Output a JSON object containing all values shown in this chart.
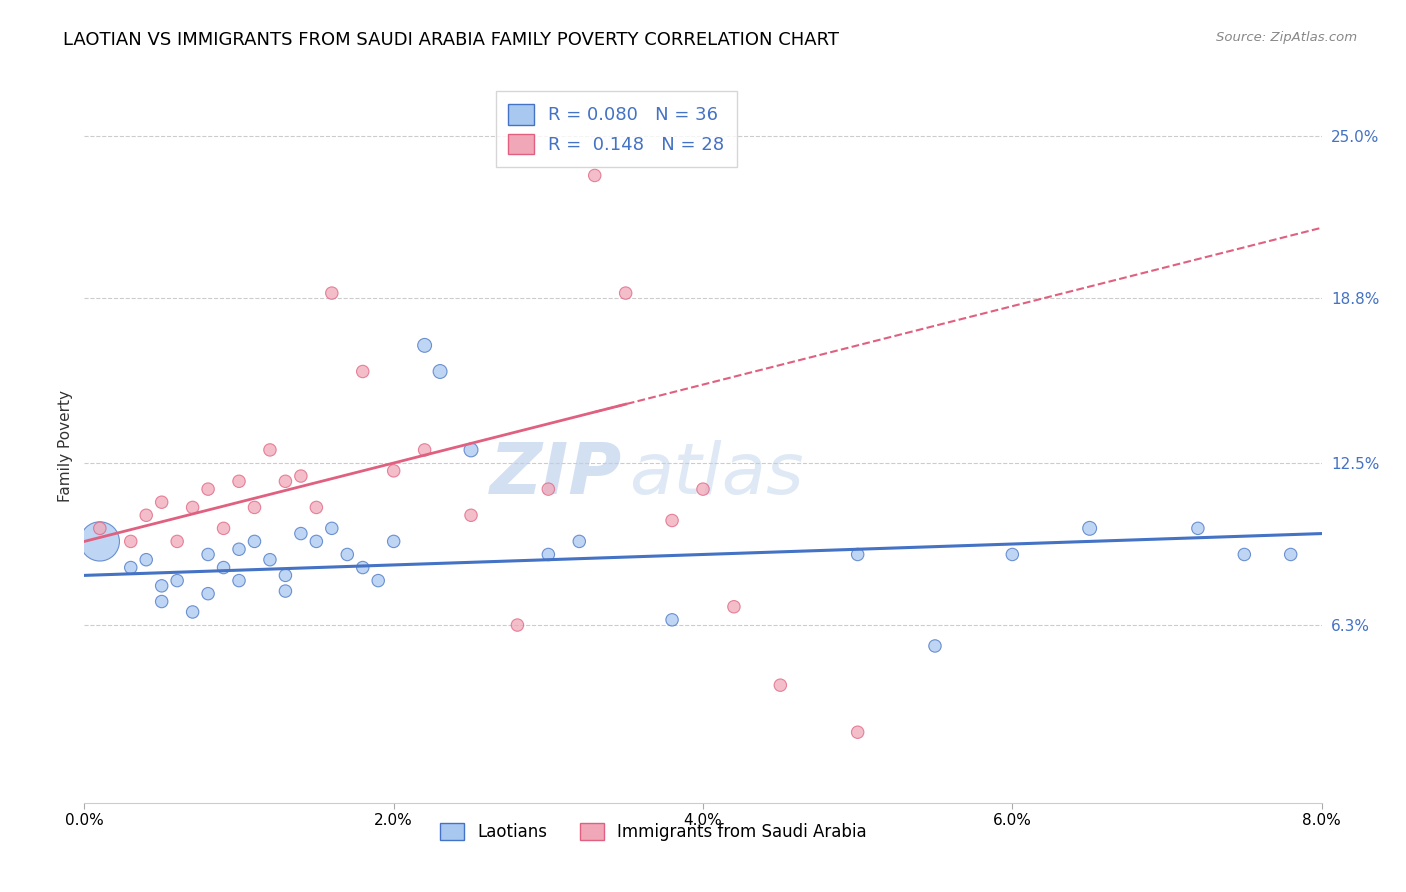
{
  "title": "LAOTIAN VS IMMIGRANTS FROM SAUDI ARABIA FAMILY POVERTY CORRELATION CHART",
  "source": "Source: ZipAtlas.com",
  "xlabel_ticks": [
    "0.0%",
    "2.0%",
    "4.0%",
    "6.0%",
    "8.0%"
  ],
  "xlabel_vals": [
    0.0,
    0.02,
    0.04,
    0.06,
    0.08
  ],
  "ylabel_ticks": [
    "6.3%",
    "12.5%",
    "18.8%",
    "25.0%"
  ],
  "ylabel_vals": [
    0.063,
    0.125,
    0.188,
    0.25
  ],
  "xmin": 0.0,
  "xmax": 0.08,
  "ymin": -0.005,
  "ymax": 0.268,
  "legend_labels": [
    "Laotians",
    "Immigrants from Saudi Arabia"
  ],
  "legend_R": [
    "0.080",
    "0.148"
  ],
  "legend_N": [
    "36",
    "28"
  ],
  "blue_color": "#a8c8f0",
  "pink_color": "#f0a8b8",
  "blue_line_color": "#4472c4",
  "pink_line_color": "#e06080",
  "blue_scatter_x": [
    0.001,
    0.003,
    0.004,
    0.005,
    0.005,
    0.006,
    0.007,
    0.008,
    0.008,
    0.009,
    0.01,
    0.01,
    0.011,
    0.012,
    0.013,
    0.013,
    0.014,
    0.015,
    0.016,
    0.017,
    0.018,
    0.019,
    0.02,
    0.022,
    0.023,
    0.025,
    0.03,
    0.032,
    0.038,
    0.05,
    0.055,
    0.06,
    0.065,
    0.072,
    0.075,
    0.078
  ],
  "blue_scatter_y": [
    0.095,
    0.085,
    0.088,
    0.078,
    0.072,
    0.08,
    0.068,
    0.09,
    0.075,
    0.085,
    0.092,
    0.08,
    0.095,
    0.088,
    0.082,
    0.076,
    0.098,
    0.095,
    0.1,
    0.09,
    0.085,
    0.08,
    0.095,
    0.17,
    0.16,
    0.13,
    0.09,
    0.095,
    0.065,
    0.09,
    0.055,
    0.09,
    0.1,
    0.1,
    0.09,
    0.09
  ],
  "blue_bubble_sizes": [
    800,
    80,
    80,
    80,
    80,
    80,
    80,
    80,
    80,
    80,
    80,
    80,
    80,
    80,
    80,
    80,
    80,
    80,
    80,
    80,
    80,
    80,
    80,
    100,
    100,
    100,
    80,
    80,
    80,
    80,
    80,
    80,
    100,
    80,
    80,
    80
  ],
  "pink_scatter_x": [
    0.001,
    0.003,
    0.004,
    0.005,
    0.006,
    0.007,
    0.008,
    0.009,
    0.01,
    0.011,
    0.012,
    0.013,
    0.014,
    0.015,
    0.016,
    0.018,
    0.02,
    0.022,
    0.025,
    0.028,
    0.03,
    0.033,
    0.035,
    0.038,
    0.04,
    0.042,
    0.045,
    0.05
  ],
  "pink_scatter_y": [
    0.1,
    0.095,
    0.105,
    0.11,
    0.095,
    0.108,
    0.115,
    0.1,
    0.118,
    0.108,
    0.13,
    0.118,
    0.12,
    0.108,
    0.19,
    0.16,
    0.122,
    0.13,
    0.105,
    0.063,
    0.115,
    0.235,
    0.19,
    0.103,
    0.115,
    0.07,
    0.04,
    0.022
  ],
  "pink_bubble_sizes": [
    80,
    80,
    80,
    80,
    80,
    80,
    80,
    80,
    80,
    80,
    80,
    80,
    80,
    80,
    80,
    80,
    80,
    80,
    80,
    80,
    80,
    80,
    80,
    80,
    80,
    80,
    80,
    80
  ],
  "watermark_zip": "ZIP",
  "watermark_atlas": "atlas",
  "title_fontsize": 13,
  "axis_label_fontsize": 11,
  "tick_fontsize": 11,
  "blue_line_intercept": 0.082,
  "blue_line_slope": 0.2,
  "pink_line_intercept": 0.095,
  "pink_line_slope": 1.5
}
